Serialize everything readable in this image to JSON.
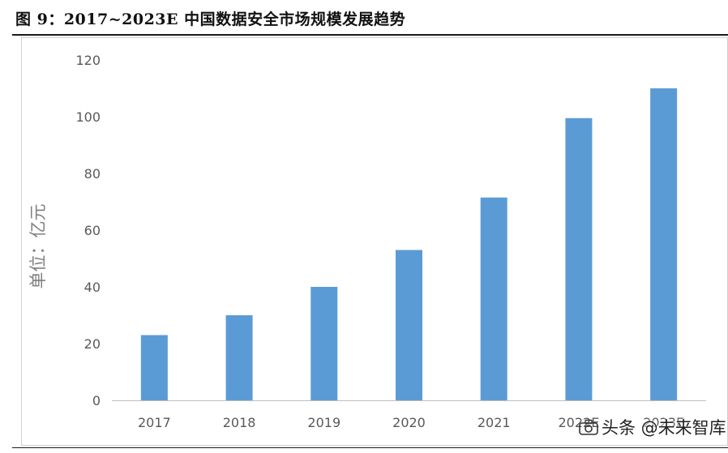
{
  "figure": {
    "title": "图 9：2017~2023E 中国数据安全市场规模发展趋势"
  },
  "watermark": {
    "text": "头条 @未来智库"
  },
  "chart_data": {
    "type": "bar",
    "title": "",
    "xlabel": "",
    "ylabel": "单位：亿元",
    "categories": [
      "2017",
      "2018",
      "2019",
      "2020",
      "2021",
      "2022E",
      "2023E"
    ],
    "values": [
      23,
      30,
      40,
      53,
      71.5,
      99.5,
      110
    ],
    "ylim": [
      0,
      120
    ],
    "yticks": [
      0,
      20,
      40,
      60,
      80,
      100,
      120
    ],
    "grid": false,
    "legend": "none",
    "bar_color": "#5b9bd5"
  }
}
